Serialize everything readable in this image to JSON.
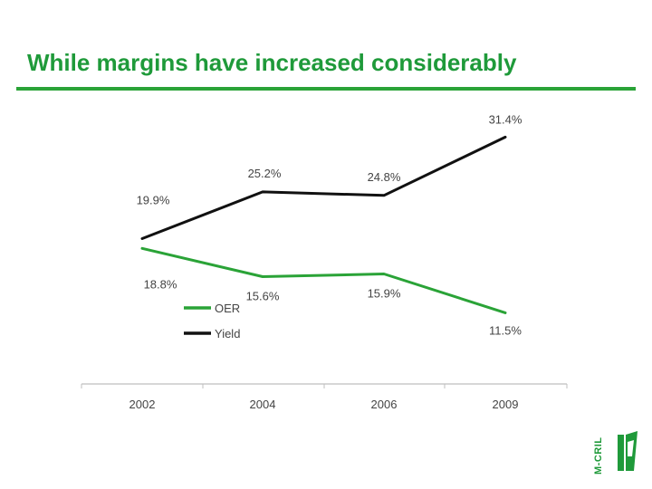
{
  "header": {
    "title": "While margins have increased considerably"
  },
  "logo": {
    "text": "M-CRIL"
  },
  "colors": {
    "accent": "#2aa337",
    "title": "#1f9a3a",
    "oer_line": "#2aa337",
    "yield_line": "#111111"
  },
  "chart_data": {
    "type": "line",
    "categories": [
      "2002",
      "2004",
      "2006",
      "2009"
    ],
    "series": [
      {
        "name": "OER",
        "values": [
          18.8,
          15.6,
          15.9,
          11.5
        ],
        "labels": [
          "18.8%",
          "15.6%",
          "15.9%",
          "11.5%"
        ],
        "color": "#2aa337"
      },
      {
        "name": "Yield",
        "values": [
          19.9,
          25.2,
          24.8,
          31.4
        ],
        "labels": [
          "19.9%",
          "25.2%",
          "24.8%",
          "31.4%"
        ],
        "color": "#111111"
      }
    ],
    "xlabel": "",
    "ylabel": "",
    "grid": false,
    "legend": "center-left"
  }
}
